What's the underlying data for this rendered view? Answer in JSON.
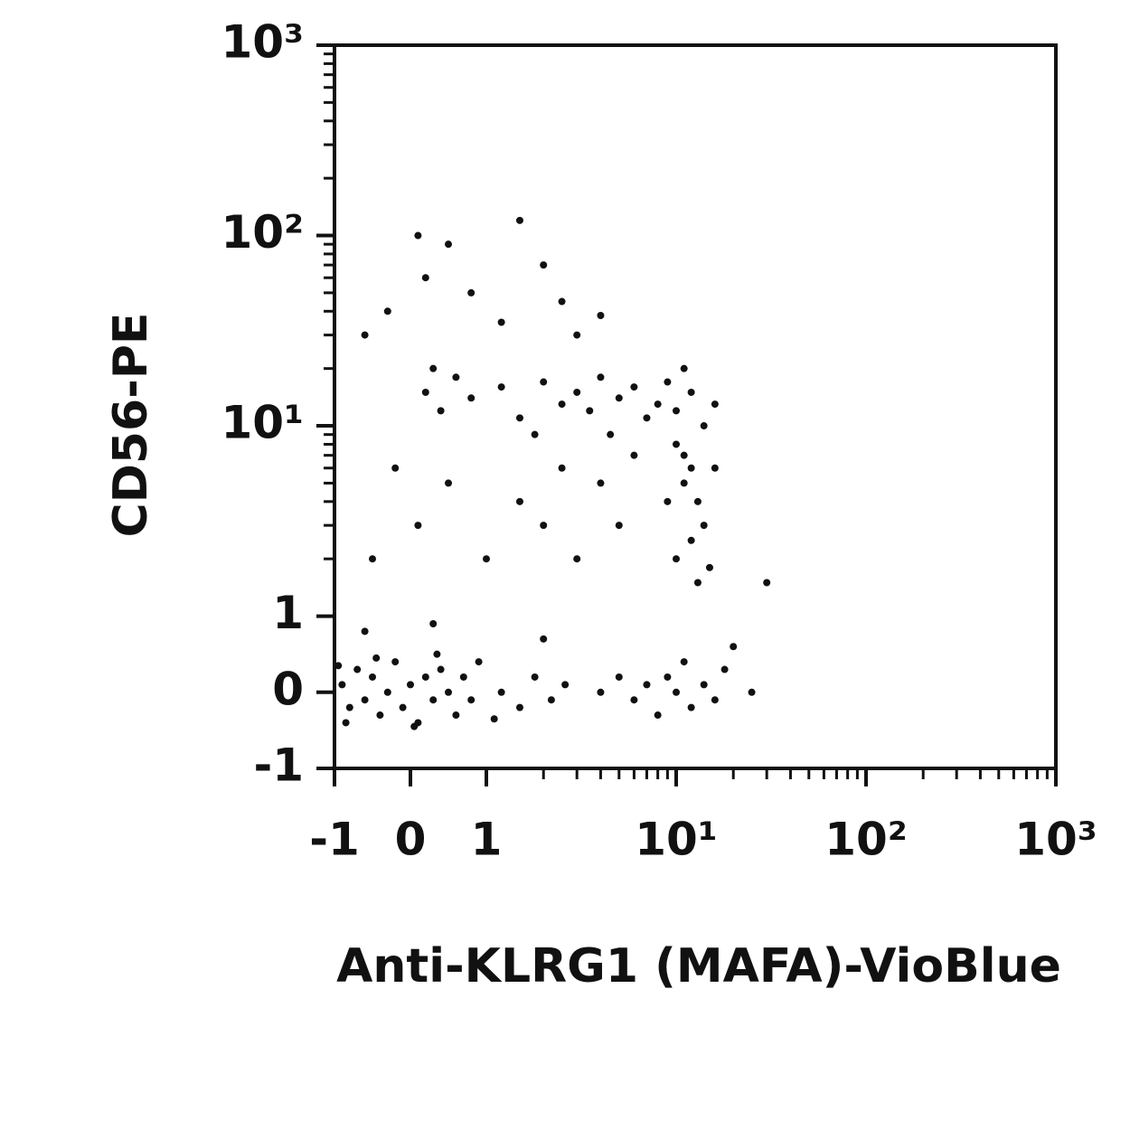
{
  "chart_data": {
    "type": "scatter",
    "xlabel": "Anti-KLRG1 (MAFA)-VioBlue",
    "ylabel": "CD56-PE",
    "xscale": "biexponential",
    "yscale": "biexponential",
    "xlim": [
      -1,
      1000
    ],
    "ylim": [
      -1,
      1000
    ],
    "xticks": [
      -1,
      0,
      1,
      {
        "value": 10,
        "label": "10¹"
      },
      {
        "value": 100,
        "label": "10²"
      },
      {
        "value": 1000,
        "label": "10³"
      }
    ],
    "yticks": [
      -1,
      0,
      1,
      {
        "value": 10,
        "label": "10¹"
      },
      {
        "value": 100,
        "label": "10²"
      },
      {
        "value": 1000,
        "label": "10³"
      }
    ],
    "xminorticks": [
      2,
      3,
      4,
      5,
      6,
      7,
      8,
      9,
      20,
      30,
      40,
      50,
      60,
      70,
      80,
      90,
      200,
      300,
      400,
      500,
      600,
      700,
      800,
      900
    ],
    "yminorticks": [
      2,
      3,
      4,
      5,
      6,
      7,
      8,
      9,
      20,
      30,
      40,
      50,
      60,
      70,
      80,
      90,
      200,
      300,
      400,
      500,
      600,
      700,
      800,
      900
    ],
    "color": "#111111",
    "x": [
      -0.9,
      -0.8,
      -0.7,
      -0.6,
      -0.5,
      -0.4,
      -0.3,
      -0.2,
      -0.1,
      0,
      0.1,
      0.2,
      0.3,
      0.4,
      0.5,
      0.6,
      0.7,
      0.8,
      0.9,
      1.2,
      1.5,
      1.8,
      2.2,
      2.6,
      -0.85,
      -0.45,
      0.05,
      0.35,
      1.1,
      -0.95,
      4,
      5,
      6,
      7,
      8,
      9,
      10,
      12,
      14,
      16,
      18,
      11,
      0.2,
      0.4,
      0.6,
      0.8,
      1.2,
      1.5,
      2,
      2.5,
      3,
      3.5,
      4,
      5,
      6,
      7,
      8,
      9,
      10,
      12,
      14,
      16,
      0.3,
      1.8,
      4.5,
      11,
      10,
      12,
      11,
      13,
      14,
      12,
      10,
      15,
      11,
      13,
      16,
      9,
      0.1,
      0.5,
      1,
      1.5,
      2,
      2.5,
      3,
      4,
      5,
      6,
      -0.5,
      -0.2,
      -0.3,
      0.2,
      0.5,
      0.8,
      1.2,
      2,
      2.5,
      3,
      -0.6,
      0.1,
      4,
      1.5,
      -0.6,
      0.3,
      2,
      20,
      30,
      25
    ],
    "y": [
      0.1,
      -0.2,
      0.3,
      -0.1,
      0.2,
      -0.3,
      0,
      0.4,
      -0.2,
      0.1,
      -0.4,
      0.2,
      -0.1,
      0.3,
      0,
      -0.3,
      0.2,
      -0.1,
      0.4,
      0,
      -0.2,
      0.2,
      -0.1,
      0.1,
      -0.4,
      0.45,
      -0.45,
      0.5,
      -0.35,
      0.35,
      0,
      0.2,
      -0.1,
      0.1,
      -0.3,
      0.2,
      0,
      -0.2,
      0.1,
      -0.1,
      0.3,
      0.4,
      15,
      12,
      18,
      14,
      16,
      11,
      17,
      13,
      15,
      12,
      18,
      14,
      16,
      11,
      13,
      17,
      12,
      15,
      10,
      13,
      20,
      9,
      9,
      20,
      8,
      6,
      5,
      4,
      3,
      2.5,
      2,
      1.8,
      7,
      1.5,
      6,
      4,
      3,
      5,
      2,
      4,
      3,
      6,
      2,
      5,
      3,
      7,
      2,
      6,
      40,
      60,
      90,
      50,
      35,
      70,
      45,
      30,
      30,
      100,
      38,
      120,
      0.8,
      0.9,
      0.7,
      0.6,
      1.5,
      0
    ]
  }
}
